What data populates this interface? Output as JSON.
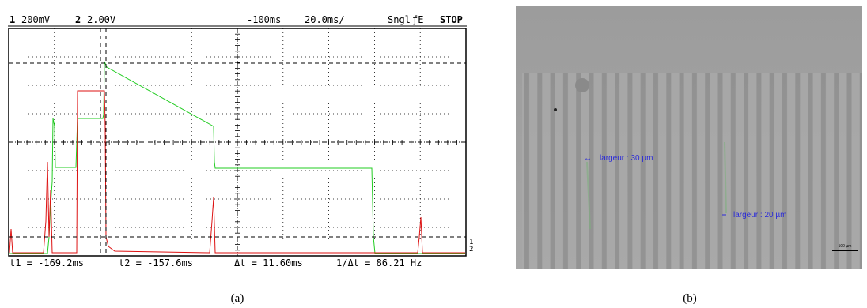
{
  "panel_a": {
    "header": {
      "ch1": "1",
      "ch1_scale": "200mV",
      "ch2": "2",
      "ch2_scale": "2.00V",
      "delay": "-100ms",
      "timebase": "20.0ms/",
      "mode": "Sngl",
      "trigger": "ƒE",
      "status": "STOP"
    },
    "footer": {
      "t1": "t1 = -169.2ms",
      "t2": "t2 = -157.6ms",
      "dt": "Δt = 11.60ms",
      "freq": "1/Δt = 86.21 Hz"
    },
    "markers": [
      "1",
      "2"
    ],
    "caption": "(a)"
  },
  "panel_b": {
    "labels": [
      "largeur : 30 µm",
      "largeur : 20 µm"
    ],
    "scale_bar": "100 µm",
    "caption": "(b)"
  }
}
